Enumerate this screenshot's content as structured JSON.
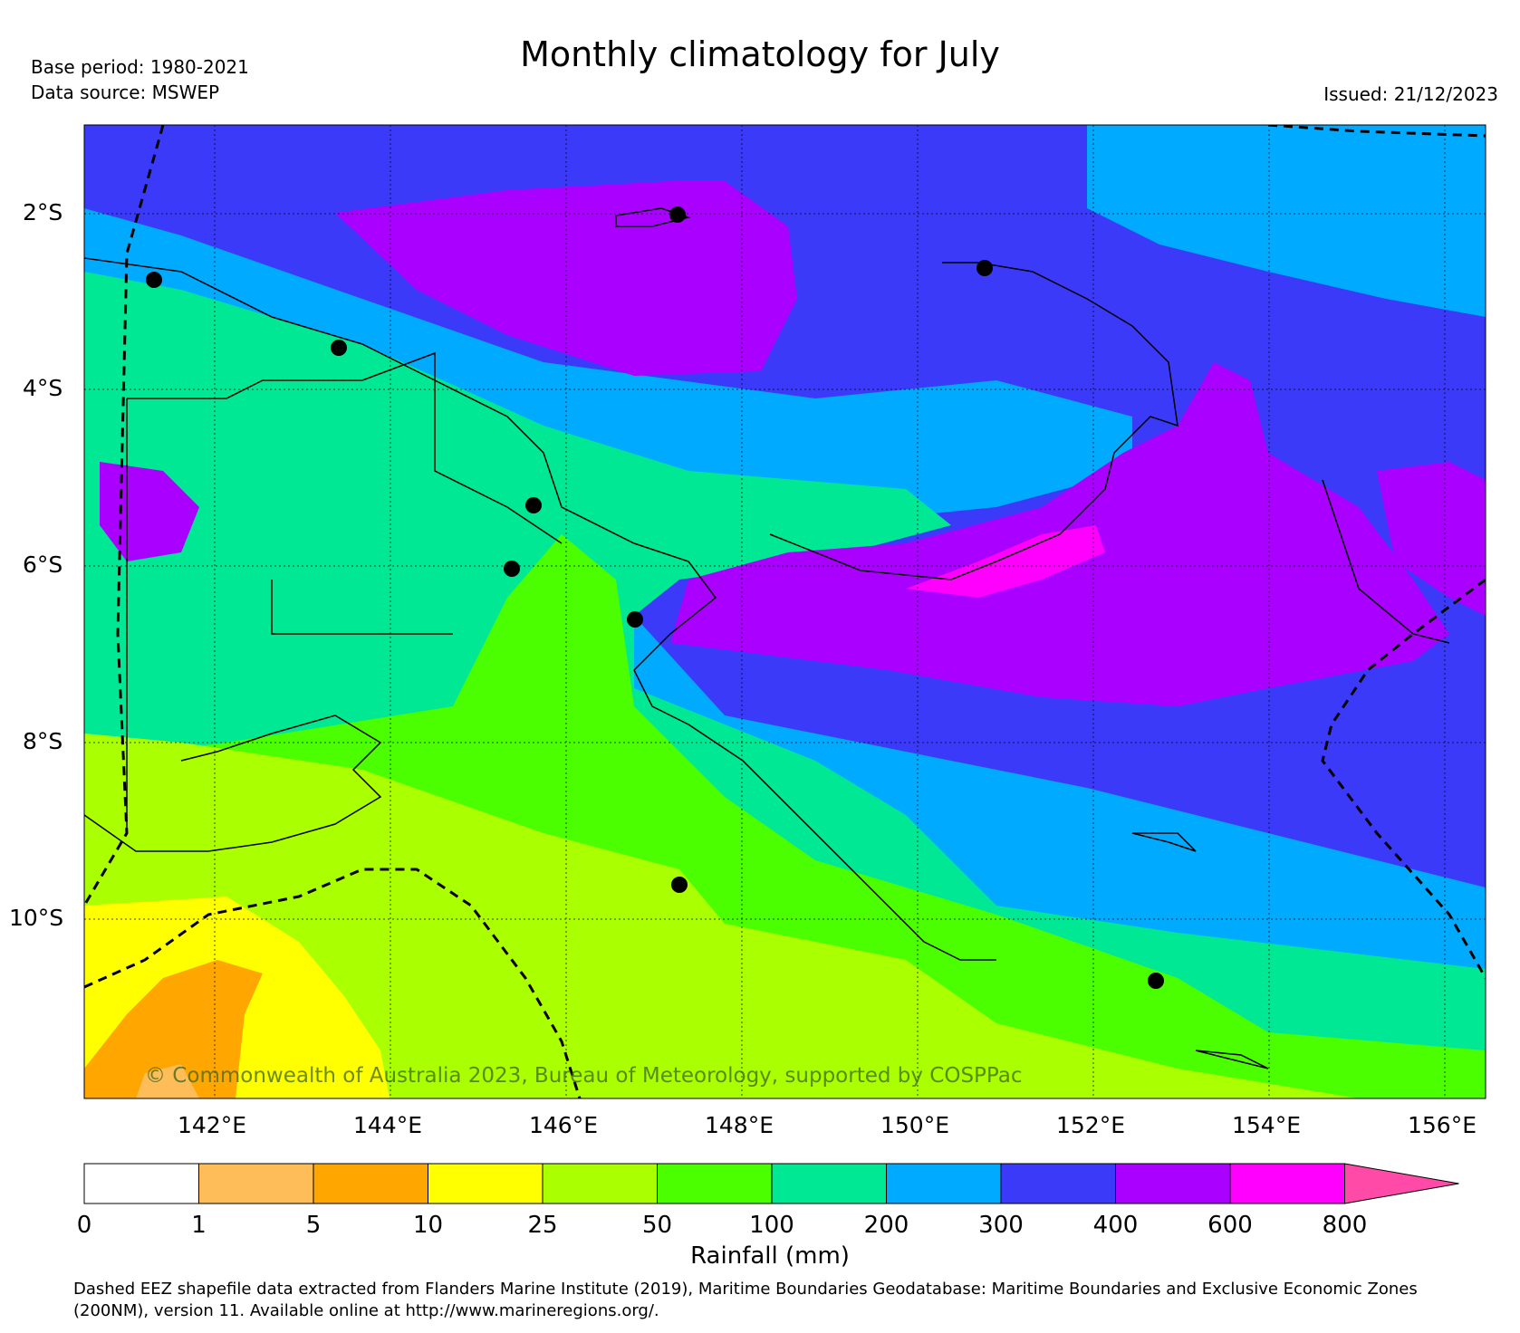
{
  "header": {
    "title": "Monthly climatology for July",
    "base_period": "Base period: 1980-2021",
    "data_source": "Data source: MSWEP",
    "issued": "Issued: 21/12/2023"
  },
  "map": {
    "lat_labels": [
      "2°S",
      "4°S",
      "6°S",
      "8°S",
      "10°S"
    ],
    "lon_labels": [
      "142°E",
      "144°E",
      "146°E",
      "148°E",
      "150°E",
      "152°E",
      "154°E",
      "156°E"
    ],
    "copyright": "© Commonwealth of Australia 2023, Bureau of Meteorology, supported by COSPPac",
    "ocean_color": "#3a3af8"
  },
  "colorbar": {
    "title": "Rainfall (mm)",
    "ticks": [
      "0",
      "1",
      "5",
      "10",
      "25",
      "50",
      "100",
      "200",
      "300",
      "400",
      "600",
      "800"
    ],
    "colors": [
      "#ffffff",
      "#ffbd5a",
      "#ffa600",
      "#ffff00",
      "#aaff00",
      "#4cff00",
      "#00e894",
      "#00aaff",
      "#3a3af8",
      "#aa00ff",
      "#ff00ff",
      "#ff4aa8"
    ]
  },
  "footer": {
    "line1": "Dashed EEZ shapefile data extracted from Flanders Marine Institute (2019), Maritime Boundaries Geodatabase: Maritime Boundaries and Exclusive Economic Zones",
    "line2": "(200NM), version 11. Available online at http://www.marineregions.org/."
  }
}
